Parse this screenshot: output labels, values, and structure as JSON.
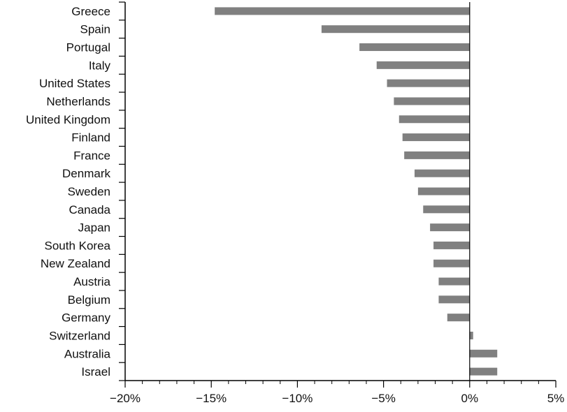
{
  "chart_data": {
    "type": "bar",
    "orientation": "horizontal",
    "title": "",
    "xlabel": "",
    "ylabel": "",
    "categories": [
      "Greece",
      "Spain",
      "Portugal",
      "Italy",
      "United States",
      "Netherlands",
      "United Kingdom",
      "Finland",
      "France",
      "Denmark",
      "Sweden",
      "Canada",
      "Japan",
      "South Korea",
      "New Zealand",
      "Austria",
      "Belgium",
      "Germany",
      "Switzerland",
      "Australia",
      "Israel"
    ],
    "values": [
      -14.8,
      -8.6,
      -6.4,
      -5.4,
      -4.8,
      -4.4,
      -4.1,
      -3.9,
      -3.8,
      -3.2,
      -3.0,
      -2.7,
      -2.3,
      -2.1,
      -2.1,
      -1.8,
      -1.8,
      -1.3,
      0.2,
      1.6,
      1.6
    ],
    "xlim": [
      -20,
      5
    ],
    "xticks": [
      -20,
      -15,
      -10,
      -5,
      0,
      5
    ],
    "xtick_labels": [
      "−20%",
      "−15%",
      "−10%",
      "−5%",
      "0%",
      "5%"
    ],
    "bar_color": "#808080",
    "grid": false,
    "legend": "none"
  }
}
